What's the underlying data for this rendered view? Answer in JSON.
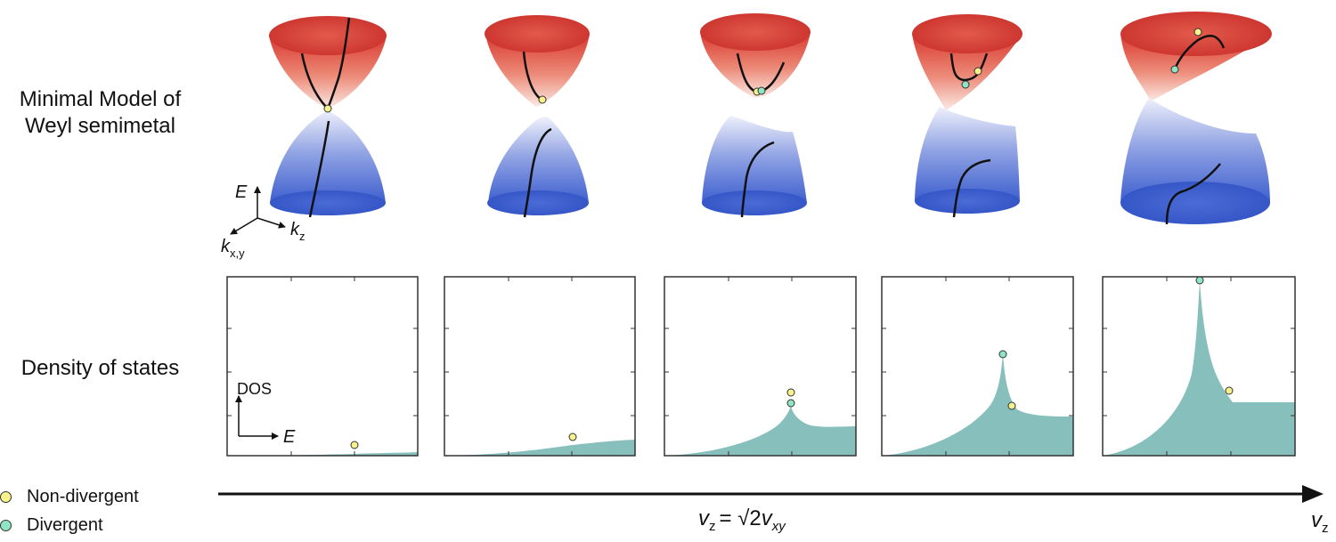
{
  "labels": {
    "model_line1": "Minimal Model of",
    "model_line2": "Weyl semimetal",
    "dos_title": "Density of states"
  },
  "axes_3d": {
    "e": "E",
    "kz_main": "k",
    "kz_sub": "z",
    "kxy_main": "k",
    "kxy_sub": "x,y"
  },
  "axes_dos": {
    "y": "DOS",
    "x": "E"
  },
  "legend": {
    "non_divergent": "Non-divergent",
    "divergent": "Divergent"
  },
  "bottom_axis": {
    "label": "v",
    "label_sub": "z",
    "critical_v": "v",
    "critical_v_sub": "z",
    "critical_eq": "= ",
    "critical_sqrt": "√2",
    "critical_rhs": "v",
    "critical_rhs_sub": "xy"
  },
  "colors": {
    "conduction": "#d9382e",
    "valence": "#3d5fcf",
    "dos_fill": "#86bfbc",
    "non_divergent_dot": "#f7f28a",
    "divergent_dot": "#8fe5c4"
  },
  "panels": [
    {
      "tilt": 0.0
    },
    {
      "tilt": 0.25
    },
    {
      "tilt": 0.5
    },
    {
      "tilt": 0.75
    },
    {
      "tilt": 1.0
    }
  ]
}
